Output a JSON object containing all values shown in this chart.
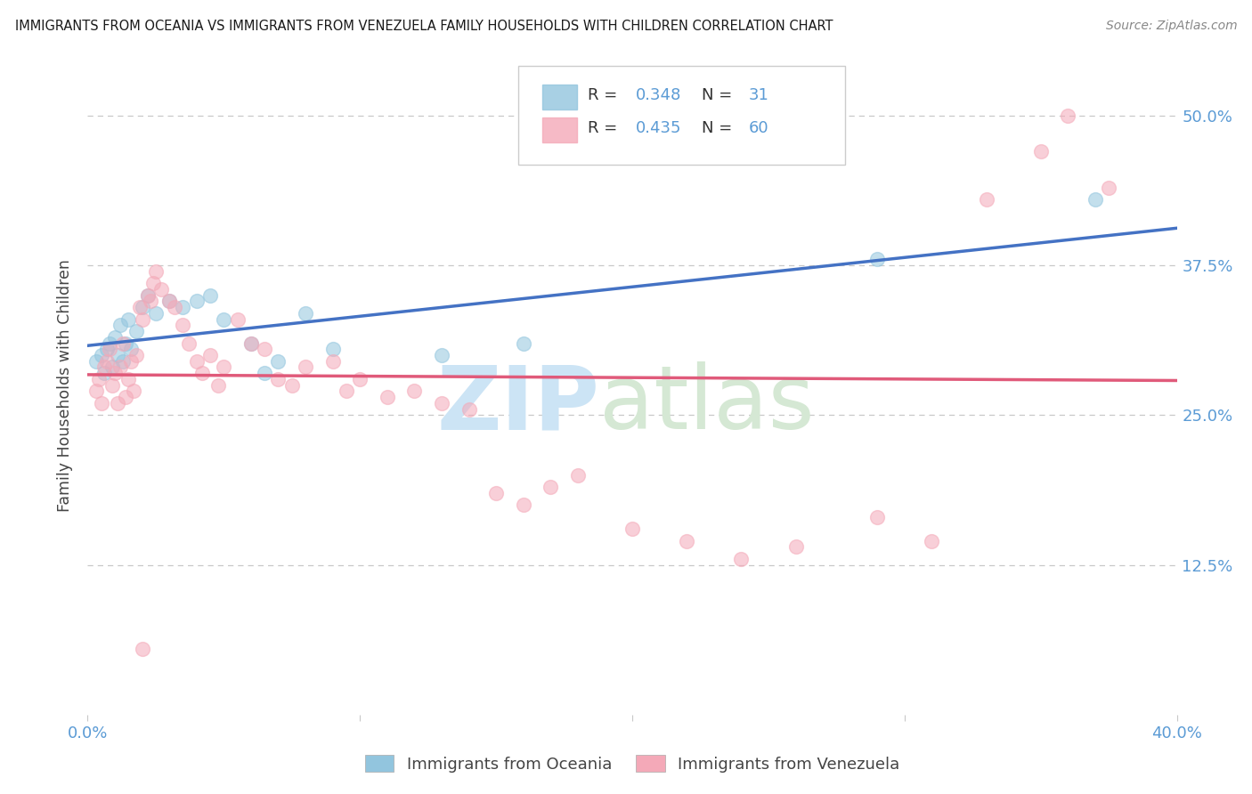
{
  "title": "IMMIGRANTS FROM OCEANIA VS IMMIGRANTS FROM VENEZUELA FAMILY HOUSEHOLDS WITH CHILDREN CORRELATION CHART",
  "source": "Source: ZipAtlas.com",
  "ylabel": "Family Households with Children",
  "xlim": [
    0.0,
    0.4
  ],
  "ylim": [
    0.0,
    0.55
  ],
  "xticks": [
    0.0,
    0.1,
    0.2,
    0.3,
    0.4
  ],
  "xtick_labels": [
    "0.0%",
    "",
    "",
    "",
    "40.0%"
  ],
  "yticks": [
    0.125,
    0.25,
    0.375,
    0.5
  ],
  "ytick_labels": [
    "12.5%",
    "25.0%",
    "37.5%",
    "50.0%"
  ],
  "oceania_R": 0.348,
  "oceania_N": 31,
  "venezuela_R": 0.435,
  "venezuela_N": 60,
  "oceania_color": "#92c5de",
  "venezuela_color": "#f4a9b8",
  "oceania_line_color": "#4472c4",
  "venezuela_line_color": "#e05a7a",
  "tick_color": "#5b9bd5",
  "grid_color": "#c8c8c8",
  "oceania_scatter": [
    [
      0.003,
      0.295
    ],
    [
      0.005,
      0.3
    ],
    [
      0.006,
      0.285
    ],
    [
      0.007,
      0.305
    ],
    [
      0.008,
      0.31
    ],
    [
      0.009,
      0.29
    ],
    [
      0.01,
      0.315
    ],
    [
      0.011,
      0.3
    ],
    [
      0.012,
      0.325
    ],
    [
      0.013,
      0.295
    ],
    [
      0.014,
      0.31
    ],
    [
      0.015,
      0.33
    ],
    [
      0.016,
      0.305
    ],
    [
      0.018,
      0.32
    ],
    [
      0.02,
      0.34
    ],
    [
      0.022,
      0.35
    ],
    [
      0.025,
      0.335
    ],
    [
      0.03,
      0.345
    ],
    [
      0.035,
      0.34
    ],
    [
      0.04,
      0.345
    ],
    [
      0.045,
      0.35
    ],
    [
      0.05,
      0.33
    ],
    [
      0.06,
      0.31
    ],
    [
      0.065,
      0.285
    ],
    [
      0.07,
      0.295
    ],
    [
      0.08,
      0.335
    ],
    [
      0.09,
      0.305
    ],
    [
      0.13,
      0.3
    ],
    [
      0.16,
      0.31
    ],
    [
      0.29,
      0.38
    ],
    [
      0.37,
      0.43
    ]
  ],
  "venezuela_scatter": [
    [
      0.003,
      0.27
    ],
    [
      0.004,
      0.28
    ],
    [
      0.005,
      0.26
    ],
    [
      0.006,
      0.29
    ],
    [
      0.007,
      0.295
    ],
    [
      0.008,
      0.305
    ],
    [
      0.009,
      0.275
    ],
    [
      0.01,
      0.285
    ],
    [
      0.011,
      0.26
    ],
    [
      0.012,
      0.29
    ],
    [
      0.013,
      0.31
    ],
    [
      0.014,
      0.265
    ],
    [
      0.015,
      0.28
    ],
    [
      0.016,
      0.295
    ],
    [
      0.017,
      0.27
    ],
    [
      0.018,
      0.3
    ],
    [
      0.019,
      0.34
    ],
    [
      0.02,
      0.33
    ],
    [
      0.022,
      0.35
    ],
    [
      0.023,
      0.345
    ],
    [
      0.024,
      0.36
    ],
    [
      0.025,
      0.37
    ],
    [
      0.027,
      0.355
    ],
    [
      0.03,
      0.345
    ],
    [
      0.032,
      0.34
    ],
    [
      0.035,
      0.325
    ],
    [
      0.037,
      0.31
    ],
    [
      0.04,
      0.295
    ],
    [
      0.042,
      0.285
    ],
    [
      0.045,
      0.3
    ],
    [
      0.048,
      0.275
    ],
    [
      0.05,
      0.29
    ],
    [
      0.055,
      0.33
    ],
    [
      0.06,
      0.31
    ],
    [
      0.065,
      0.305
    ],
    [
      0.07,
      0.28
    ],
    [
      0.075,
      0.275
    ],
    [
      0.08,
      0.29
    ],
    [
      0.09,
      0.295
    ],
    [
      0.095,
      0.27
    ],
    [
      0.1,
      0.28
    ],
    [
      0.11,
      0.265
    ],
    [
      0.12,
      0.27
    ],
    [
      0.13,
      0.26
    ],
    [
      0.14,
      0.255
    ],
    [
      0.15,
      0.185
    ],
    [
      0.16,
      0.175
    ],
    [
      0.17,
      0.19
    ],
    [
      0.18,
      0.2
    ],
    [
      0.2,
      0.155
    ],
    [
      0.22,
      0.145
    ],
    [
      0.24,
      0.13
    ],
    [
      0.26,
      0.14
    ],
    [
      0.29,
      0.165
    ],
    [
      0.31,
      0.145
    ],
    [
      0.33,
      0.43
    ],
    [
      0.35,
      0.47
    ],
    [
      0.36,
      0.5
    ],
    [
      0.375,
      0.44
    ],
    [
      0.02,
      0.055
    ]
  ],
  "watermark_zip_color": "#cce4f5",
  "watermark_atlas_color": "#d5e8d4"
}
